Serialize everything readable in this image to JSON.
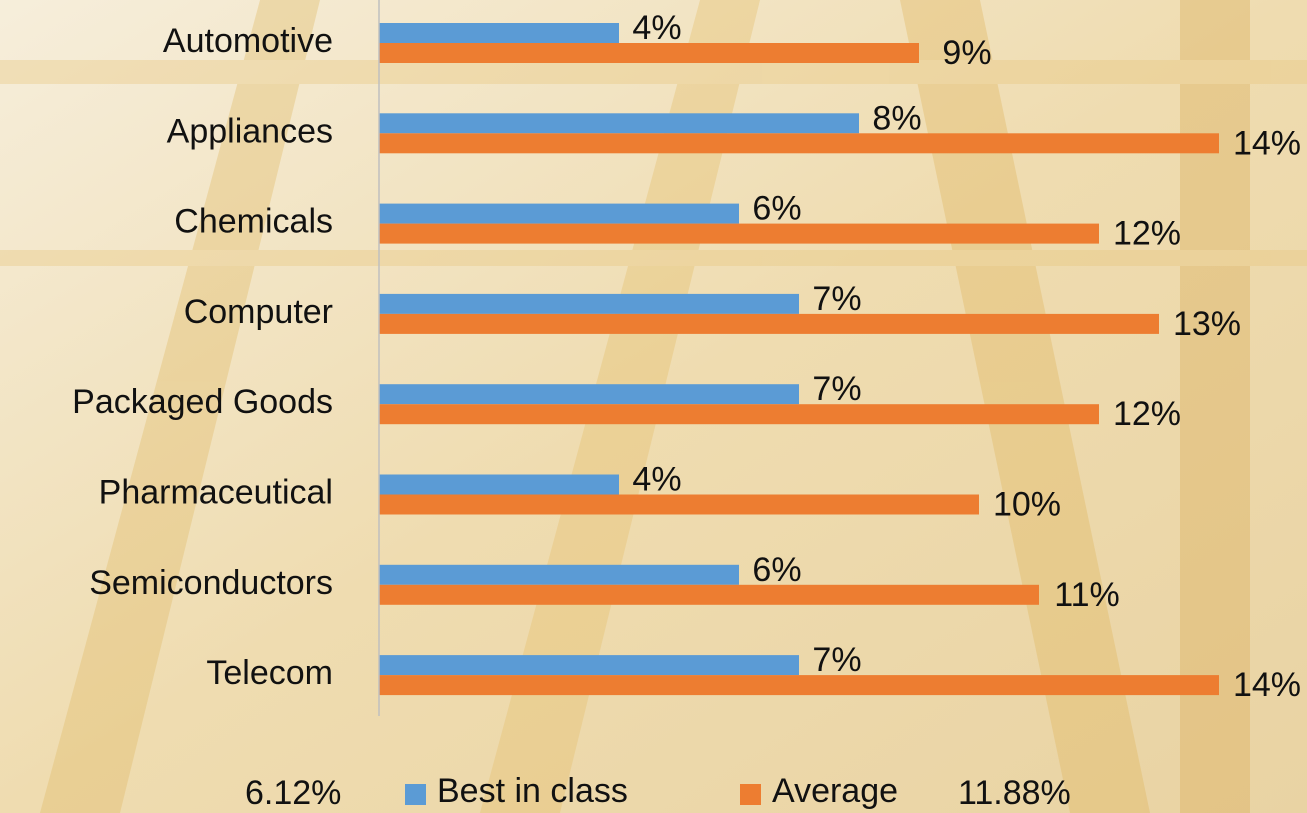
{
  "chart_data": {
    "type": "hbar",
    "categories": [
      "Automotive",
      "Appliances",
      "Chemicals",
      "Computer",
      "Packaged Goods",
      "Pharmaceutical",
      "Semiconductors",
      "Telecom"
    ],
    "series": [
      {
        "name": "Best in class",
        "color": "#5b9bd5",
        "values": [
          4,
          8,
          6,
          7,
          7,
          4,
          6,
          7
        ],
        "value_labels": [
          "4%",
          "8%",
          "6%",
          "7%",
          "7%",
          "4%",
          "6%",
          "7%"
        ]
      },
      {
        "name": "Average",
        "color": "#ed7d31",
        "values": [
          9,
          14,
          12,
          13,
          12,
          10,
          11,
          14
        ],
        "value_labels": [
          "9%",
          "14%",
          "12%",
          "13%",
          "12%",
          "10%",
          "11%",
          "14%"
        ]
      }
    ],
    "annotations": [
      "6.12%",
      "11.88%"
    ],
    "xlim": [
      0,
      15
    ]
  }
}
